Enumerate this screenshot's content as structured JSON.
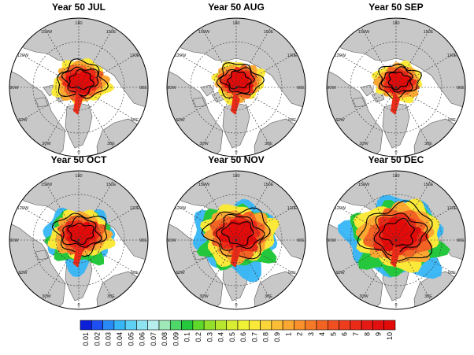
{
  "panels": [
    {
      "title": "Year 50 JUL",
      "extent": 0.62,
      "fringe": 0.15
    },
    {
      "title": "Year 50 AUG",
      "extent": 0.55,
      "fringe": 0.1
    },
    {
      "title": "Year 50 SEP",
      "extent": 0.52,
      "fringe": 0.1
    },
    {
      "title": "Year 50 OCT",
      "extent": 0.68,
      "fringe": 0.3
    },
    {
      "title": "Year 50 NOV",
      "extent": 0.85,
      "fringe": 0.55
    },
    {
      "title": "Year 50 DEC",
      "extent": 1.0,
      "fringe": 0.75
    }
  ],
  "longitude_labels": [
    "180",
    "150E",
    "120E",
    "90E",
    "60E",
    "30E",
    "0",
    "30W",
    "60W",
    "90W",
    "120W",
    "150W"
  ],
  "colorbar": {
    "labels": [
      "0.01",
      "0.02",
      "0.03",
      "0.04",
      "0.05",
      "0.06",
      "0.07",
      "0.08",
      "0.09",
      "0.1",
      "0.2",
      "0.3",
      "0.4",
      "0.5",
      "0.6",
      "0.7",
      "0.8",
      "0.9",
      "1",
      "2",
      "3",
      "4",
      "5",
      "6",
      "7",
      "8",
      "9",
      "10"
    ],
    "colors": [
      "#0b1fd9",
      "#1e4ff0",
      "#2a8af5",
      "#36b6f7",
      "#5fd0f5",
      "#8ee3f2",
      "#b6efee",
      "#9fe8b7",
      "#4fd86a",
      "#25c83c",
      "#5ed82a",
      "#92e02c",
      "#b8e62e",
      "#d8ec32",
      "#f0f236",
      "#fbe93a",
      "#fbd53a",
      "#fbbd36",
      "#fba832",
      "#f8902c",
      "#f57a28",
      "#f36424",
      "#f04f20",
      "#ee3d1c",
      "#ea2b18",
      "#e61a14",
      "#e31010",
      "#e30a0a"
    ]
  },
  "colors": {
    "land": "#c8c8c8",
    "ocean": "#ffffff",
    "contour": "#000000"
  }
}
